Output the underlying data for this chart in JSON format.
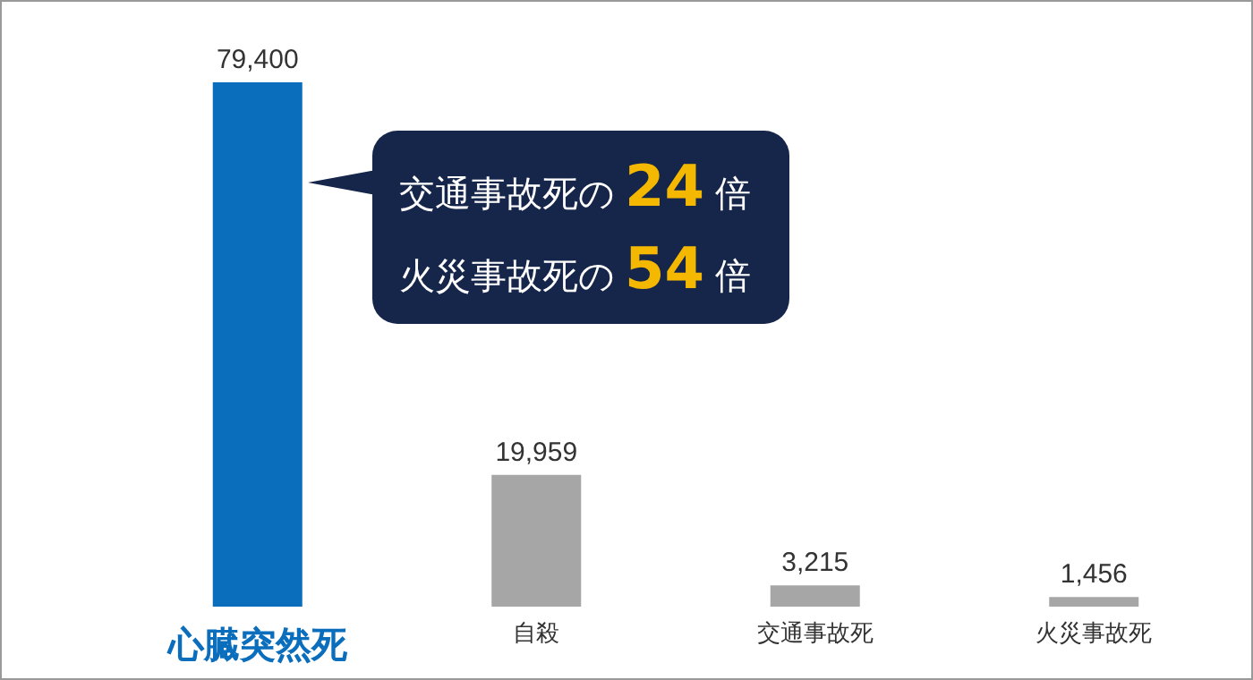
{
  "chart_data": {
    "type": "bar",
    "categories": [
      "心臓突然死",
      "自殺",
      "交通事故死",
      "火災事故死"
    ],
    "values": [
      79400,
      19959,
      3215,
      1456
    ],
    "colors": [
      "#0a6ebd",
      "#a6a6a6",
      "#a6a6a6",
      "#a6a6a6"
    ],
    "value_labels": [
      "79,400",
      "19,959",
      "3,215",
      "1,456"
    ],
    "annotations": [
      "交通事故死の24倍",
      "火災事故死の54倍"
    ]
  }
}
